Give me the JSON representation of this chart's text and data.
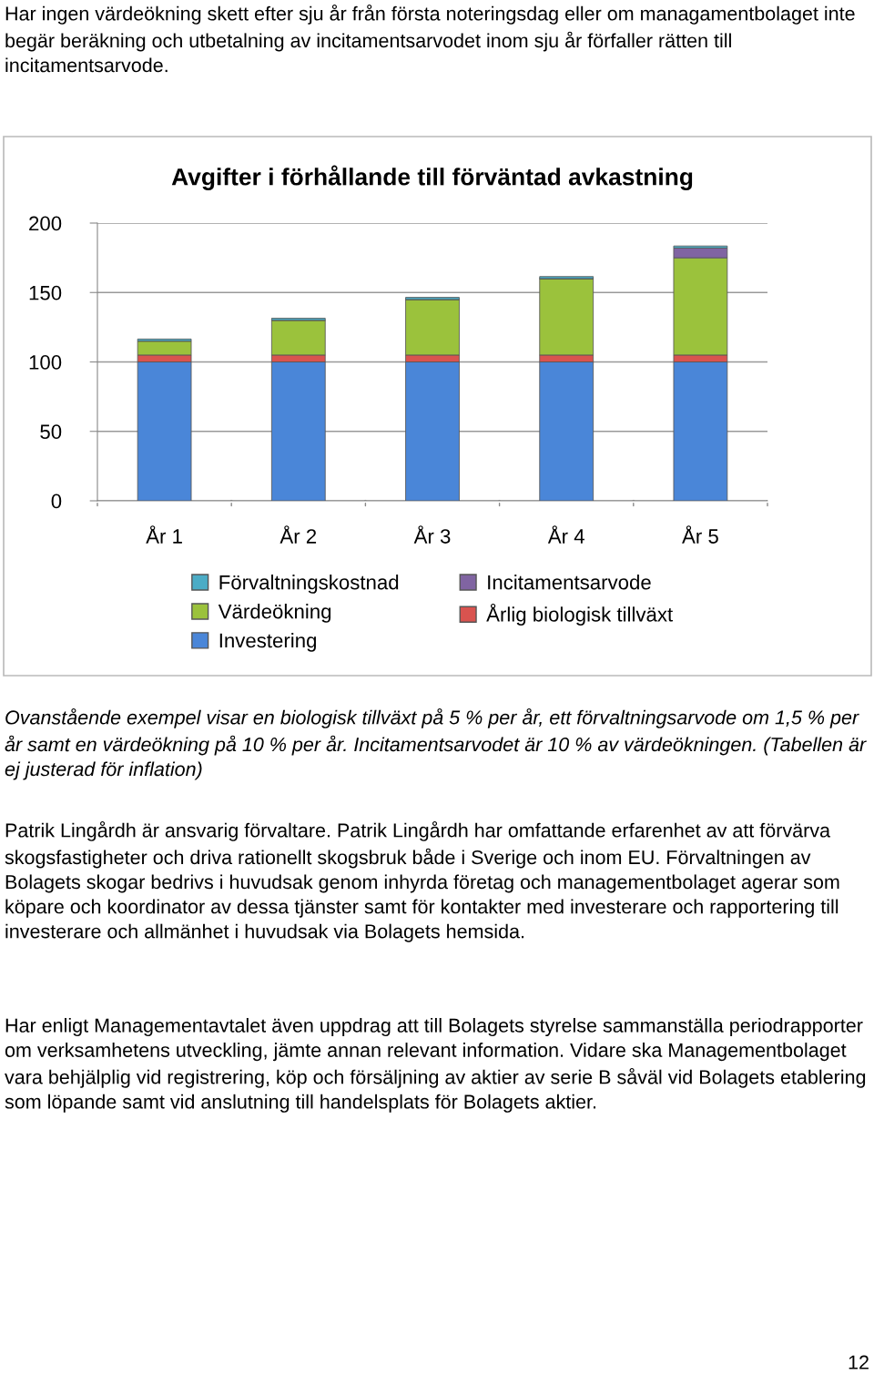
{
  "chart_data": {
    "type": "bar",
    "title": "Avgifter i förhållande till förväntad avkastning",
    "categories": [
      "År 1",
      "År 2",
      "År 3",
      "År 4",
      "År 5"
    ],
    "stacked": true,
    "series": [
      {
        "name": "Investering",
        "color": "#4a86d8",
        "values": [
          100,
          100,
          100,
          100,
          100
        ]
      },
      {
        "name": "Årlig biologisk tillväxt",
        "color": "#d9534f",
        "values": [
          5,
          5,
          5,
          5,
          5
        ]
      },
      {
        "name": "Värdeökning",
        "color": "#9bc23c",
        "values": [
          10,
          25,
          40,
          55,
          70
        ]
      },
      {
        "name": "Incitamentsarvode",
        "color": "#8064a2",
        "values": [
          0,
          0,
          0,
          0,
          7
        ]
      },
      {
        "name": "Förvaltningskostnad",
        "color": "#4bacc6",
        "values": [
          1.5,
          1.5,
          1.5,
          1.5,
          1.5
        ]
      }
    ],
    "ylim": [
      0,
      200
    ],
    "yticks": [
      0,
      50,
      100,
      150,
      200
    ],
    "grid": "y",
    "legend": "bottom",
    "annotations": [
      "Har ingen värdeökning skett efter sju år från första noteringsdag eller om managamentbolaget inte begär beräkning och utbetalning av incitamentsarvodet inom sju år förfaller rätten till incitamentsarvode.",
      "Ovanstående exempel visar en biologisk tillväxt på 5 % per år, ett förvaltningsarvode om 1,5 % per år samt en värdeökning på 10 % per år. Incitamentsarvodet är 10 % av värdeökningen. (Tabellen är ej justerad för inflation)",
      "Patrik Lingårdh är ansvarig förvaltare. Patrik Lingårdh har omfattande erfarenhet av att förvärva skogsfastigheter och driva rationellt skogsbruk både i Sverige och inom EU. Förvaltningen av Bolagets skogar bedrivs i huvudsak genom inhyrda företag och managementbolaget agerar som köpare och koordinator av dessa tjänster samt för kontakter med investerare och rapportering till investerare och allmänhet i huvudsak via Bolagets hemsida.",
      "Har enligt Managementavtalet även uppdrag att till Bolagets styrelse sammanställa periodrapporter om verksamhetens utveckling, jämte annan relevant information. Vidare ska Managementbolaget vara behjälplig vid registrering, köp och försäljning av aktier av serie B såväl vid Bolagets etablering som löpande samt vid anslutning till handelsplats för Bolagets aktier.",
      "12"
    ]
  }
}
